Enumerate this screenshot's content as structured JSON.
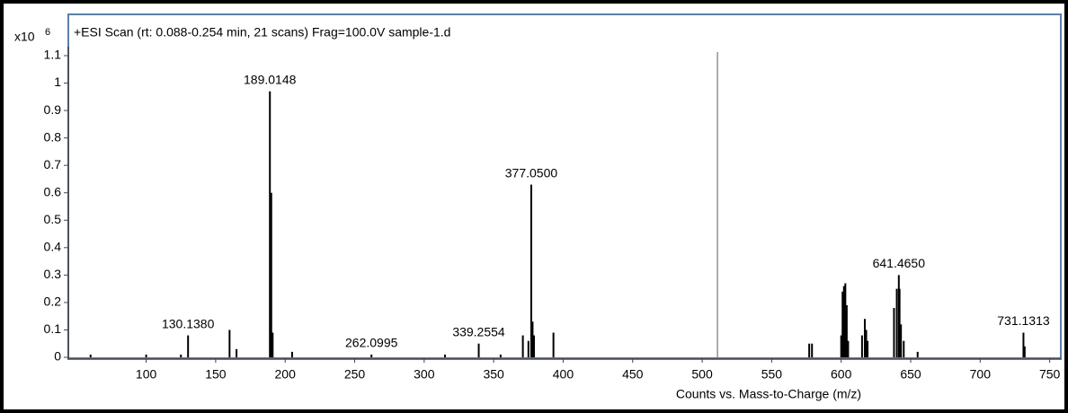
{
  "chart_data": {
    "type": "spectrum",
    "title": "+ESI Scan (rt: 0.088-0.254 min, 21 scans) Frag=100.0V sample-1.d",
    "y_scale": "x10",
    "y_scale_exp": "6",
    "x_label": "Counts vs. Mass-to-Charge (m/z)",
    "color": "#000000",
    "marker_x": 511,
    "xlim": [
      44,
      758
    ],
    "xticks": [
      100,
      150,
      200,
      250,
      300,
      350,
      400,
      450,
      500,
      550,
      600,
      650,
      700,
      750
    ],
    "ylim": [
      0,
      1.1
    ],
    "yticks": [
      0,
      0.1,
      0.2,
      0.3,
      0.4,
      0.5,
      0.6,
      0.7,
      0.8,
      0.9,
      1,
      1.1
    ],
    "x": [
      60,
      100,
      125,
      130.138,
      160,
      165,
      189.0148,
      190,
      191,
      205,
      262.0995,
      315,
      339.2554,
      355,
      371,
      375,
      377.05,
      378,
      379,
      393,
      577,
      579,
      600,
      601,
      602,
      603,
      604,
      605,
      615,
      617,
      618,
      619,
      638,
      640,
      641.465,
      642,
      643,
      645,
      655,
      731.1313,
      732
    ],
    "values": [
      0.01,
      0.01,
      0.01,
      0.08,
      0.1,
      0.03,
      0.97,
      0.6,
      0.09,
      0.02,
      0.01,
      0.01,
      0.05,
      0.01,
      0.08,
      0.06,
      0.63,
      0.13,
      0.08,
      0.09,
      0.05,
      0.05,
      0.08,
      0.24,
      0.26,
      0.27,
      0.19,
      0.06,
      0.08,
      0.14,
      0.1,
      0.06,
      0.18,
      0.25,
      0.3,
      0.25,
      0.12,
      0.06,
      0.02,
      0.09,
      0.04
    ],
    "x_labels": [
      null,
      null,
      null,
      "130.1380",
      null,
      null,
      "189.0148",
      null,
      null,
      null,
      "262.0995",
      null,
      "339.2554",
      null,
      null,
      null,
      "377.0500",
      null,
      null,
      null,
      null,
      null,
      null,
      null,
      null,
      null,
      null,
      null,
      null,
      null,
      null,
      null,
      null,
      null,
      "641.4650",
      null,
      null,
      null,
      null,
      "731.1313",
      null
    ]
  }
}
